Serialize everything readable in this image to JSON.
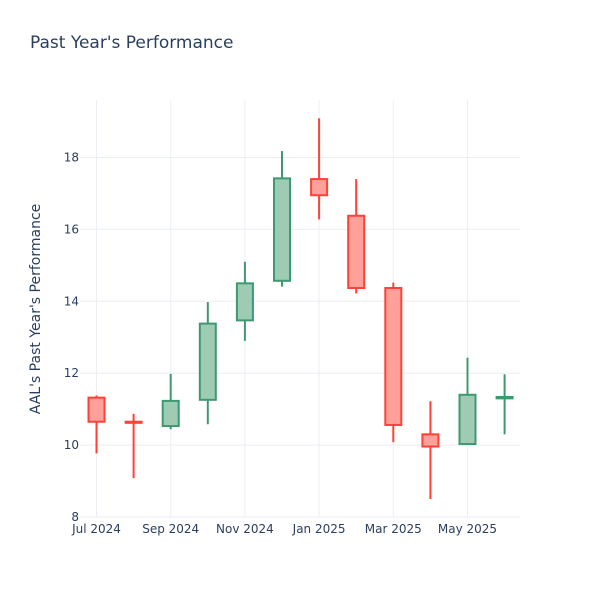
{
  "chart_data": {
    "type": "candlestick",
    "title": "Past Year's Performance",
    "xlabel": "",
    "ylabel": "AAL's Past Year's Performance",
    "ylim": [
      8,
      19.6
    ],
    "y_ticks": [
      8,
      10,
      12,
      14,
      16,
      18
    ],
    "x_tick_labels": [
      "Jul 2024",
      "Sep 2024",
      "Nov 2024",
      "Jan 2025",
      "Mar 2025",
      "May 2025"
    ],
    "x_tick_positions": [
      0,
      2,
      4,
      6,
      8,
      10
    ],
    "grid": true,
    "legend": "none",
    "colors": {
      "increasing_line": "#3d9970",
      "increasing_fill": "#9ecbb4",
      "decreasing_line": "#ff4136",
      "decreasing_fill": "#ffa09b",
      "grid": "#ebeef3",
      "text": "#2a3f5f"
    },
    "candles": [
      {
        "x": "2024-07",
        "open": 11.32,
        "high": 11.38,
        "low": 9.77,
        "close": 10.65
      },
      {
        "x": "2024-08",
        "open": 10.65,
        "high": 10.87,
        "low": 9.08,
        "close": 10.62
      },
      {
        "x": "2024-09",
        "open": 10.53,
        "high": 11.98,
        "low": 10.44,
        "close": 11.23
      },
      {
        "x": "2024-10",
        "open": 11.26,
        "high": 13.98,
        "low": 10.58,
        "close": 13.38
      },
      {
        "x": "2024-11",
        "open": 13.47,
        "high": 15.1,
        "low": 12.9,
        "close": 14.5
      },
      {
        "x": "2024-12",
        "open": 14.57,
        "high": 18.18,
        "low": 14.41,
        "close": 17.42
      },
      {
        "x": "2025-01",
        "open": 17.4,
        "high": 19.09,
        "low": 16.28,
        "close": 16.95
      },
      {
        "x": "2025-02",
        "open": 16.38,
        "high": 17.4,
        "low": 14.22,
        "close": 14.37
      },
      {
        "x": "2025-03",
        "open": 14.37,
        "high": 14.52,
        "low": 10.08,
        "close": 10.56
      },
      {
        "x": "2025-04",
        "open": 10.3,
        "high": 11.22,
        "low": 8.5,
        "close": 9.96
      },
      {
        "x": "2025-05",
        "open": 10.03,
        "high": 12.43,
        "low": 10.03,
        "close": 11.4
      },
      {
        "x": "2025-06",
        "open": 11.3,
        "high": 11.97,
        "low": 10.3,
        "close": 11.34
      }
    ]
  }
}
